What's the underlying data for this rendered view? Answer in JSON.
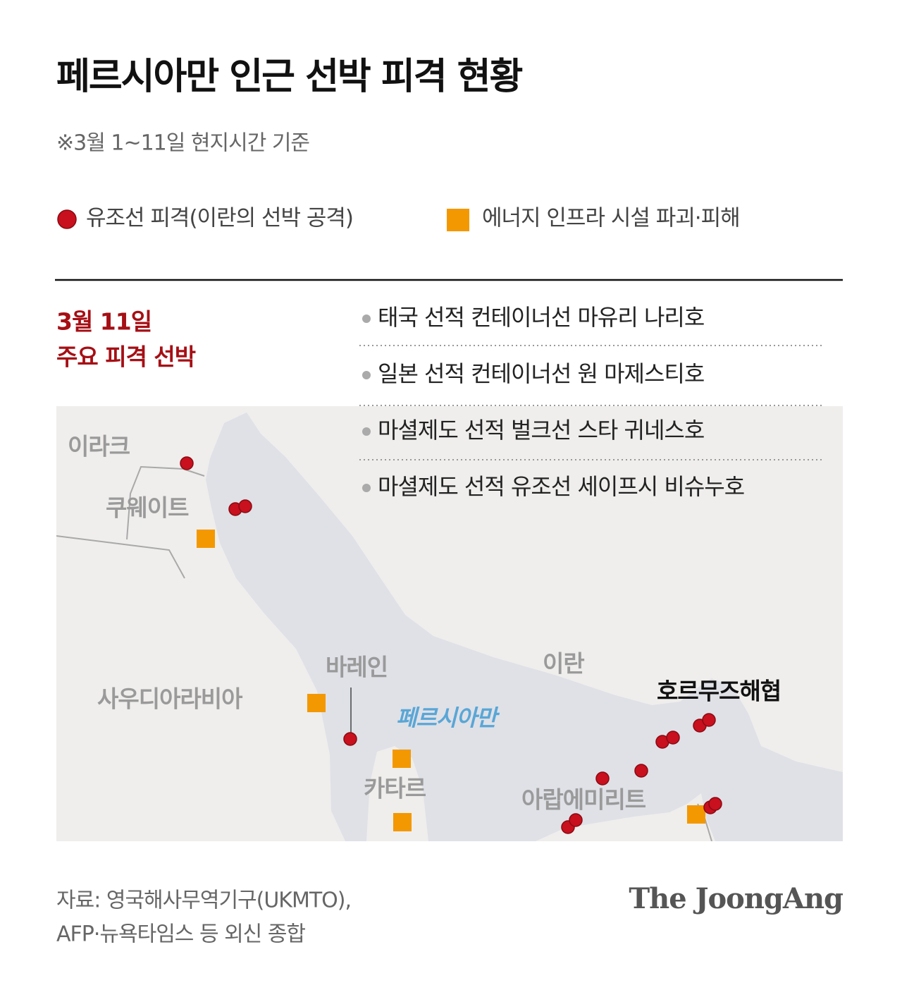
{
  "header": {
    "title": "페르시아만 인근 선박 피격 현황",
    "subtitle": "※3월 1~11일  현지시간 기준"
  },
  "legend": [
    {
      "label": "유조선 피격(이란의 선박 공격)"
    },
    {
      "label": "에너지 인프라 시설 파괴·피해"
    }
  ],
  "highlight": {
    "heading": [
      "3월 11일",
      "주요 피격 선박"
    ],
    "items": [
      "태국 선적 컨테이너선 마유리 나리호",
      "일본 선적 컨테이너선 원 마제스티호",
      "마셜제도 선적 벌크선 스타 귀네스호",
      "마셜제도 선적 유조선 세이프시 비슈누호"
    ]
  },
  "map": {
    "countries": [
      "이라크",
      "쿠웨이트",
      "사우디아라비아",
      "바레인",
      "이란",
      "카타르",
      "아랍에미리트"
    ],
    "sea_label": "페르시아만",
    "strait_label": "호르무즈해협"
  },
  "footer": {
    "source": [
      "자료: 영국해사무역기구(UKMTO),",
      "AFP·뉴욕타임스 등 외신 종합"
    ],
    "brand": "The JoongAng"
  }
}
